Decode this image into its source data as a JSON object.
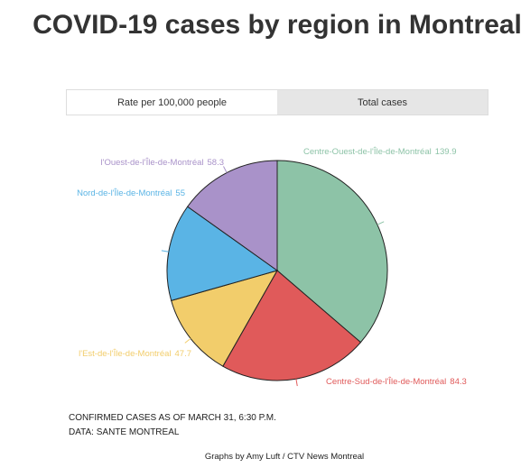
{
  "title": "COVID-19 cases by region in Montreal",
  "tabs": [
    "Rate per 100,000 people",
    "Total cases"
  ],
  "chart_data": {
    "type": "pie",
    "categories": [
      "Centre-Ouest-de-l'Île-de-Montréal",
      "Centre-Sud-de-l'Île-de-Montréal",
      "l'Est-de-l'Île-de-Montréal",
      "Nord-de-l'Île-de-Montréal",
      "l'Ouest-de-l'Île-de-Montréal"
    ],
    "values": [
      139.9,
      84.3,
      47.7,
      55,
      58.3
    ],
    "colors": [
      "#8dc3a7",
      "#e05a5a",
      "#f2cd6b",
      "#5ab4e5",
      "#a992c9"
    ]
  },
  "notes": [
    "CONFIRMED CASES AS OF MARCH 31, 6:30 P.M.",
    "DATA: SANTE MONTREAL"
  ],
  "credit": "Graphs by Amy Luft / CTV News Montreal"
}
